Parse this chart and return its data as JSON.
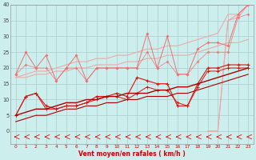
{
  "xlabel": "Vent moyen/en rafales ( km/h )",
  "background_color": "#cceeed",
  "grid_color": "#aacccc",
  "x": [
    0,
    1,
    2,
    3,
    4,
    5,
    6,
    7,
    8,
    9,
    10,
    11,
    12,
    13,
    14,
    15,
    16,
    17,
    18,
    19,
    20,
    21,
    22,
    23
  ],
  "line_upper1": [
    0,
    0,
    0,
    0,
    0,
    0,
    0,
    0,
    0,
    0,
    0,
    0,
    0,
    0,
    0,
    0,
    0,
    0,
    0,
    0,
    0,
    35,
    37,
    40
  ],
  "line_upper2": [
    0,
    0,
    0,
    0,
    0,
    0,
    0,
    0,
    0,
    0,
    0,
    0,
    0,
    0,
    0,
    0,
    0,
    0,
    0,
    0,
    0,
    35,
    36,
    40
  ],
  "line_diag_top": [
    17,
    18,
    19,
    19,
    20,
    21,
    22,
    22,
    23,
    23,
    24,
    24,
    25,
    26,
    26,
    27,
    27,
    28,
    29,
    30,
    31,
    37,
    37,
    40
  ],
  "line_diag_bot": [
    17,
    17,
    18,
    18,
    19,
    19,
    20,
    20,
    21,
    21,
    21,
    22,
    22,
    23,
    23,
    24,
    24,
    24,
    25,
    26,
    27,
    28,
    28,
    29
  ],
  "line_gust_zigzag": [
    18,
    25,
    20,
    24,
    16,
    20,
    24,
    16,
    20,
    20,
    20,
    20,
    20,
    31,
    20,
    30,
    18,
    18,
    26,
    28,
    28,
    27,
    37,
    40
  ],
  "line_med_zigzag": [
    18,
    21,
    20,
    20,
    16,
    20,
    20,
    16,
    20,
    20,
    20,
    20,
    20,
    25,
    20,
    22,
    18,
    18,
    22,
    25,
    25,
    25,
    36,
    37
  ],
  "line_dark_zigzag": [
    5,
    11,
    12,
    8,
    7,
    8,
    8,
    9,
    11,
    11,
    12,
    11,
    17,
    16,
    15,
    15,
    8,
    8,
    15,
    20,
    20,
    21,
    21,
    21
  ],
  "line_dark_zigzag2": [
    5,
    11,
    12,
    7,
    7,
    8,
    8,
    9,
    10,
    11,
    11,
    10,
    12,
    14,
    13,
    13,
    9,
    8,
    14,
    19,
    19,
    20,
    20,
    20
  ],
  "line_trend_dark1": [
    5,
    6,
    7,
    7,
    8,
    9,
    9,
    10,
    10,
    11,
    11,
    12,
    12,
    12,
    13,
    13,
    14,
    14,
    15,
    16,
    17,
    18,
    19,
    20
  ],
  "line_trend_dark2": [
    3,
    4,
    5,
    5,
    6,
    7,
    7,
    8,
    8,
    9,
    9,
    10,
    10,
    11,
    11,
    11,
    12,
    12,
    13,
    14,
    15,
    16,
    17,
    18
  ],
  "ylim": [
    0,
    40
  ],
  "yticks": [
    0,
    5,
    10,
    15,
    20,
    25,
    30,
    35,
    40
  ],
  "color_light": "#f0a8a8",
  "color_mid": "#f07070",
  "color_dark": "#dd1111",
  "color_deep": "#aa0000"
}
